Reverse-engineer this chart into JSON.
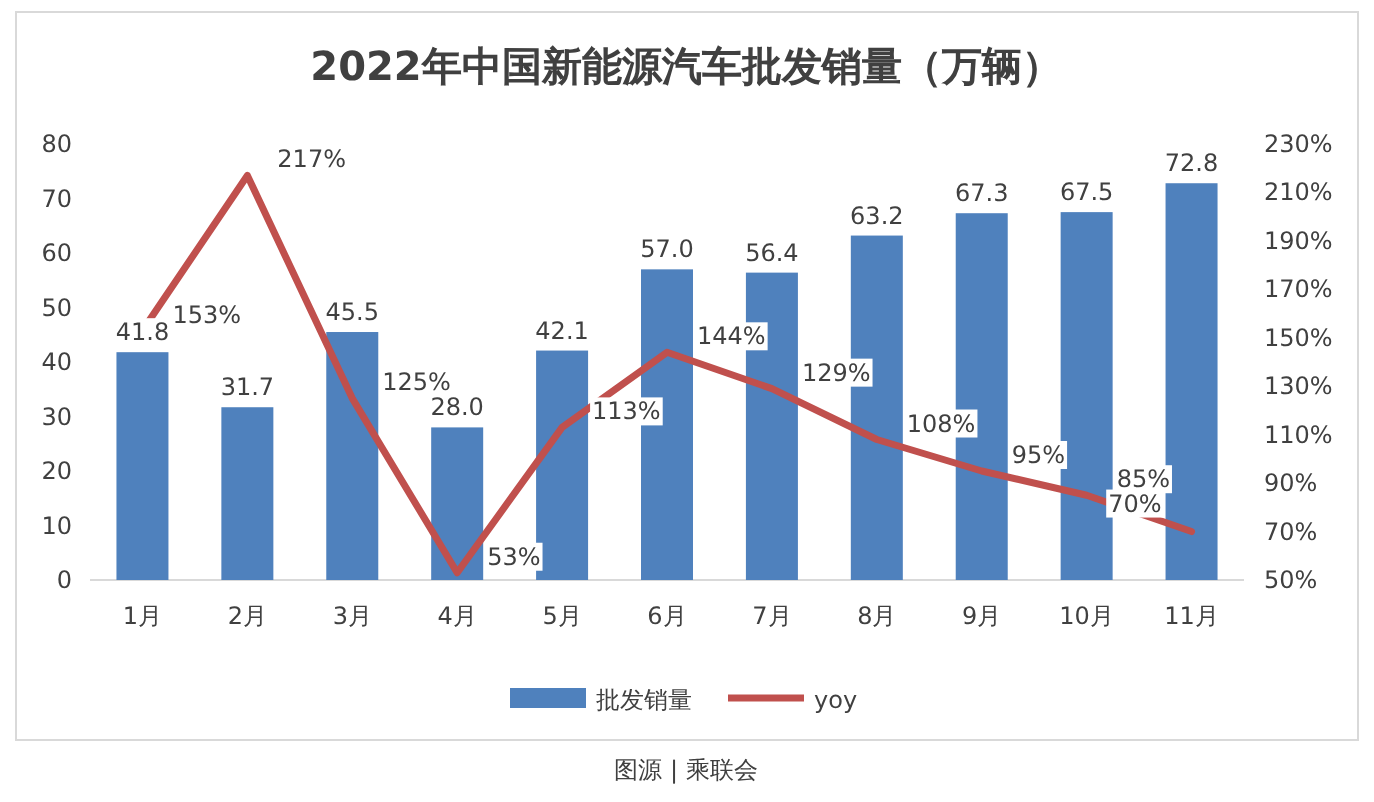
{
  "chart_data": {
    "type": "bar",
    "title": "2022年中国新能源汽车批发销量（万辆）",
    "categories": [
      "1月",
      "2月",
      "3月",
      "4月",
      "5月",
      "6月",
      "7月",
      "8月",
      "9月",
      "10月",
      "11月"
    ],
    "series": [
      {
        "name": "批发销量",
        "color": "#4f81bd",
        "values": [
          41.8,
          31.7,
          45.5,
          28.0,
          42.1,
          57.0,
          56.4,
          63.2,
          67.3,
          67.5,
          72.8
        ],
        "value_labels": [
          "41.8",
          "31.7",
          "45.5",
          "28.0",
          "42.1",
          "57.0",
          "56.4",
          "63.2",
          "67.3",
          "67.5",
          "72.8"
        ]
      },
      {
        "name": "yoy",
        "type": "line",
        "axis": "y2",
        "color": "#c0504d",
        "values": [
          153,
          217,
          125,
          53,
          113,
          144,
          129,
          108,
          95,
          85,
          70
        ],
        "value_labels": [
          "153%",
          "217%",
          "125%",
          "53%",
          "113%",
          "144%",
          "129%",
          "108%",
          "95%",
          "85%",
          "70%"
        ]
      }
    ],
    "ylim": [
      0,
      80
    ],
    "yticks": [
      0,
      10,
      20,
      30,
      40,
      50,
      60,
      70,
      80
    ],
    "y2lim": [
      50,
      230
    ],
    "y2ticks": [
      {
        "value": 50,
        "label": "50%"
      },
      {
        "value": 70,
        "label": "70%"
      },
      {
        "value": 90,
        "label": "90%"
      },
      {
        "value": 110,
        "label": "110%"
      },
      {
        "value": 130,
        "label": "130%"
      },
      {
        "value": 150,
        "label": "150%"
      },
      {
        "value": 170,
        "label": "170%"
      },
      {
        "value": 190,
        "label": "190%"
      },
      {
        "value": 210,
        "label": "210%"
      },
      {
        "value": 230,
        "label": "230%"
      }
    ],
    "legend": "bottom",
    "annotations": [
      "图源 | 乘联会"
    ]
  }
}
